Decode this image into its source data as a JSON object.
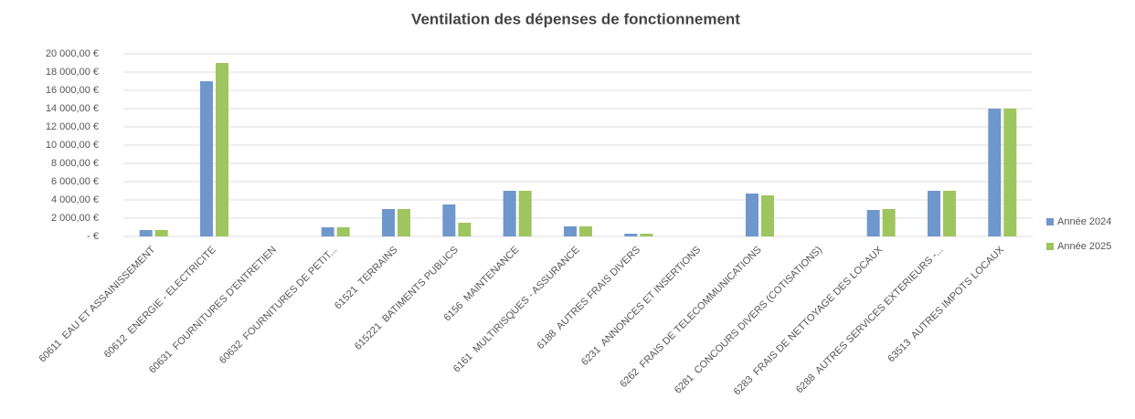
{
  "chart_data": {
    "type": "bar",
    "title": "Ventilation des dépenses de fonctionnement",
    "categories": [
      "60611  EAU ET ASSAINISSEMENT",
      "60612  ENERGIE - ELECTRICITE",
      "60631  FOURNITURES D'ENTRETIEN",
      "60632  FOURNITURES DE PETIT...",
      "61521  TERRAINS",
      "615221  BATIMENTS PUBLICS",
      "6156  MAINTENANCE",
      "6161  MULTIRISQUES - ASSURANCE",
      "6188  AUTRES FRAIS DIVERS",
      "6231  ANNONCES ET INSERTIONS",
      "6262  FRAIS DE TELECOMMUNICATIONS",
      "6281  CONCOURS DIVERS (COTISATIONS)",
      "6283  FRAIS DE NETTOYAGE DES LOCAUX",
      "6288  AUTRES SERVICES EXTERIEURS -...",
      "63513  AUTRES IMPOTS LOCAUX"
    ],
    "series": [
      {
        "name": "Année 2024",
        "color": "#6f97cc",
        "values": [
          700,
          17000,
          0,
          1000,
          3000,
          3500,
          5000,
          1100,
          300,
          0,
          4700,
          0,
          2900,
          5000,
          14000
        ]
      },
      {
        "name": "Année 2025",
        "color": "#9fc55f",
        "values": [
          700,
          19000,
          0,
          1000,
          3000,
          1500,
          5000,
          1100,
          300,
          0,
          4500,
          0,
          3000,
          5000,
          14000
        ]
      }
    ],
    "ylim": [
      0,
      20000
    ],
    "yticks": [
      {
        "value": 0,
        "label": " -   €"
      },
      {
        "value": 2000,
        "label": "2 000,00 €"
      },
      {
        "value": 4000,
        "label": "4 000,00 €"
      },
      {
        "value": 6000,
        "label": "6 000,00 €"
      },
      {
        "value": 8000,
        "label": "8 000,00 €"
      },
      {
        "value": 10000,
        "label": "10 000,00 €"
      },
      {
        "value": 12000,
        "label": "12 000,00 €"
      },
      {
        "value": 14000,
        "label": "14 000,00 €"
      },
      {
        "value": 16000,
        "label": "16 000,00 €"
      },
      {
        "value": 18000,
        "label": "18 000,00 €"
      },
      {
        "value": 20000,
        "label": "20 000,00 €"
      }
    ],
    "grid": true,
    "legend": "right"
  }
}
